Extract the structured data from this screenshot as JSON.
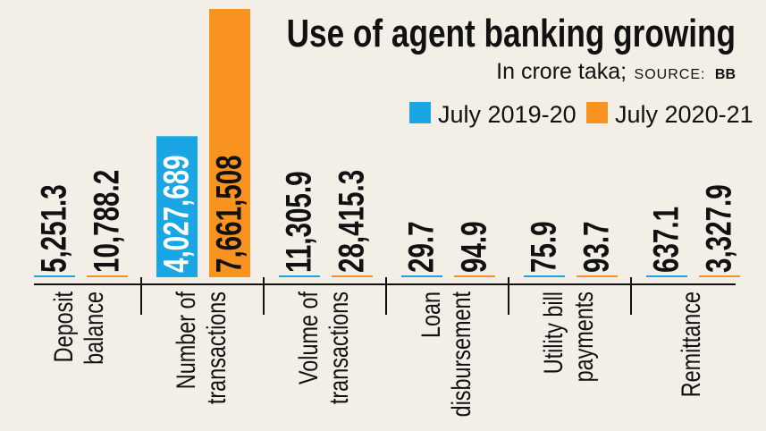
{
  "chart_data": {
    "type": "bar",
    "title": "Use of agent banking growing",
    "subtitle": "In crore taka;",
    "source_label": "SOURCE:",
    "source": "BB",
    "legend_placement": "top-right",
    "categories": [
      [
        "Deposit",
        "balance"
      ],
      [
        "Number of",
        "transactions"
      ],
      [
        "Volume of",
        "transactions"
      ],
      [
        "Loan",
        "disbursement"
      ],
      [
        "Utility bill",
        "payments"
      ],
      [
        "Remittance"
      ]
    ],
    "series": [
      {
        "name": "July 2019-20",
        "color": "#1aa6e4",
        "values": [
          5251.3,
          4027689,
          11305.9,
          29.7,
          75.9,
          637.1
        ],
        "labels": [
          "5,251.3",
          "4,027,689",
          "11,305.9",
          "29.7",
          "75.9",
          "637.1"
        ]
      },
      {
        "name": "July 2020-21",
        "color": "#f7931e",
        "values": [
          10788.2,
          7661508,
          28415.3,
          94.9,
          93.7,
          3327.9
        ],
        "labels": [
          "10,788.2",
          "7,661,508",
          "28,415.3",
          "94.9",
          "93.7",
          "3,327.9"
        ]
      }
    ],
    "ylim": [
      0,
      7661508
    ],
    "grid": false
  }
}
